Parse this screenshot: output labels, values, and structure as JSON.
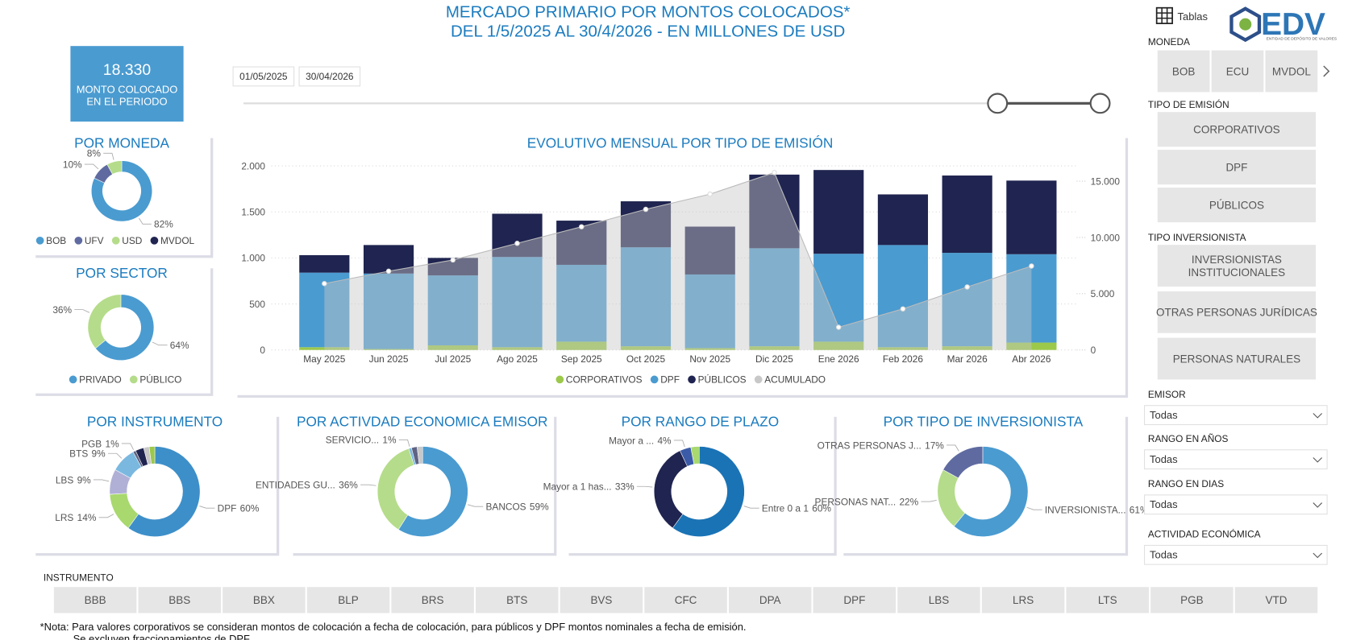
{
  "header": {
    "title_lines": [
      "MERCADO PRIMARIO POR MONTOS COLOCADOS*",
      "DEL 1/5/2025 AL 30/4/2026 - EN MILLONES DE USD"
    ],
    "tables_button": "Tablas",
    "logo": "EDV",
    "logo_tagline": "ENTIDAD DE DEPÓSITO DE VALORES"
  },
  "kpi": {
    "value": "18.330",
    "label_lines": [
      "MONTO COLOCADO",
      "EN EL PERIODO"
    ]
  },
  "date_range": {
    "start": "01/05/2025",
    "end": "30/04/2026"
  },
  "chart_data": [
    {
      "type": "donut",
      "title": "POR MONEDA",
      "categories": [
        "BOB",
        "UFV",
        "USD",
        "MVDOL"
      ],
      "values": [
        82,
        10,
        8,
        null
      ],
      "value_labels": [
        "82%",
        "10%",
        "8%",
        null
      ],
      "colors": [
        "#4a9bd0",
        "#5f6ba0",
        "#b5dc8a",
        "#1f2450"
      ],
      "legend": "bottom",
      "labels": "percent"
    },
    {
      "type": "donut",
      "title": "POR SECTOR",
      "categories": [
        "PRIVADO",
        "PÚBLICO"
      ],
      "values": [
        64,
        36
      ],
      "value_labels": [
        "64%",
        "36%"
      ],
      "colors": [
        "#4a9bd0",
        "#b5dc8a"
      ],
      "legend": "bottom",
      "labels": "percent"
    },
    {
      "type": "bar",
      "stacked": true,
      "title": "EVOLUTIVO MENSUAL POR TIPO DE EMISIÓN",
      "categories": [
        "May 2025",
        "Jun 2025",
        "Jul 2025",
        "Ago 2025",
        "Sep 2025",
        "Oct 2025",
        "Nov 2025",
        "Dic 2025",
        "Ene 2026",
        "Feb 2026",
        "Mar 2026",
        "Abr 2026"
      ],
      "series": [
        {
          "name": "CORPORATIVOS",
          "color": "#9cc94a",
          "values": [
            30,
            10,
            50,
            30,
            90,
            40,
            20,
            40,
            90,
            30,
            40,
            80
          ]
        },
        {
          "name": "DPF",
          "color": "#4a9bd0",
          "values": [
            810,
            820,
            760,
            980,
            835,
            1075,
            800,
            1065,
            955,
            1110,
            1015,
            960
          ]
        },
        {
          "name": "PÚBLICOS",
          "color": "#1f2450",
          "values": [
            190,
            310,
            190,
            470,
            480,
            500,
            520,
            800,
            910,
            550,
            840,
            800
          ]
        },
        {
          "name": "ACUMULADO",
          "color": "#c8c8c8",
          "type": "area",
          "axis": "y2",
          "values": [
            5900,
            7000,
            8000,
            9480,
            10950,
            12500,
            13850,
            15770,
            2020,
            3650,
            5600,
            7460
          ]
        }
      ],
      "ylim": [
        0,
        2200
      ],
      "yticks": [
        0,
        500,
        {
          "value": 1000,
          "label": "1.000"
        },
        {
          "value": 1500,
          "label": "1.500"
        },
        {
          "value": 2000,
          "label": "2.000"
        }
      ],
      "y2lim": [
        0,
        18000
      ],
      "y2ticks": [
        0,
        {
          "value": 5000,
          "label": "5.000"
        },
        {
          "value": 10000,
          "label": "10.000"
        },
        {
          "value": 15000,
          "label": "15.000"
        }
      ],
      "grid": true,
      "legend": "bottom"
    },
    {
      "type": "donut",
      "title": "POR INSTRUMENTO",
      "categories": [
        "DPF",
        "LRS",
        "LBS",
        "BTS",
        "PGB",
        null,
        null,
        null
      ],
      "values": [
        60,
        14,
        9,
        9,
        1,
        3,
        2,
        2
      ],
      "value_labels": [
        "60%",
        "14%",
        "9%",
        "9%",
        "1%",
        null,
        null,
        null
      ],
      "colors": [
        "#3d8fc9",
        "#a8d86e",
        "#b0b0d6",
        "#7ab8e0",
        "#5f6484",
        "#1f2450",
        "#c8c8c8",
        "#9cc94a"
      ],
      "labels": "category-and-percent"
    },
    {
      "type": "donut",
      "title": "POR ACTIVDAD ECONOMICA EMISOR",
      "categories": [
        "BANCOS",
        "ENTIDADES GU...",
        "SERVICIO...",
        null,
        null
      ],
      "values": [
        59,
        36,
        1,
        2,
        2
      ],
      "value_labels": [
        "59%",
        "36%",
        "1%",
        null,
        null
      ],
      "colors": [
        "#4a9bd0",
        "#b5dc8a",
        "#7ab8e0",
        "#5f6484",
        "#c8c8c8"
      ],
      "labels": "category-and-percent"
    },
    {
      "type": "donut",
      "title": "POR RANGO DE PLAZO",
      "categories": [
        "Entre 0 a 1",
        "Mayor a 1 has...",
        "Mayor a ...",
        null
      ],
      "values": [
        60,
        33,
        4,
        3
      ],
      "value_labels": [
        "60%",
        "33%",
        "4%",
        null
      ],
      "colors": [
        "#1a73b5",
        "#1f2450",
        "#3b5ba8",
        "#a8d86e"
      ],
      "labels": "category-and-percent"
    },
    {
      "type": "donut",
      "title": "POR TIPO DE INVERSIONISTA",
      "categories": [
        "INVERSIONISTA...",
        "PERSONAS NAT...",
        "OTRAS PERSONAS J..."
      ],
      "values": [
        61,
        22,
        17
      ],
      "value_labels": [
        "61%",
        "22%",
        "17%"
      ],
      "colors": [
        "#4a9bd0",
        "#b5dc8a",
        "#5f6ba0"
      ],
      "labels": "category-and-percent"
    }
  ],
  "slicers": {
    "moneda": {
      "label": "MONEDA",
      "options": [
        "BOB",
        "ECU",
        "MVDOL"
      ]
    },
    "tipo_emision": {
      "label": "TIPO DE EMISIÓN",
      "options": [
        "CORPORATIVOS",
        "DPF",
        "PÚBLICOS"
      ]
    },
    "tipo_inversionista": {
      "label": "TIPO INVERSIONISTA",
      "options": [
        [
          "INVERSIONISTAS",
          "INSTITUCIONALES"
        ],
        [
          "OTRAS PERSONAS JURÍDICAS"
        ],
        [
          "PERSONAS NATURALES"
        ]
      ]
    },
    "dropdowns": [
      {
        "label": "EMISOR",
        "value": "Todas"
      },
      {
        "label": "RANGO EN AÑOS",
        "value": "Todas"
      },
      {
        "label": "RANGO EN DIAS",
        "value": "Todas"
      },
      {
        "label": "ACTIVIDAD ECONÓMICA",
        "value": "Todas"
      }
    ],
    "instrumento": {
      "label": "INSTRUMENTO",
      "options": [
        "BBB",
        "BBS",
        "BBX",
        "BLP",
        "BRS",
        "BTS",
        "BVS",
        "CFC",
        "DPA",
        "DPF",
        "LBS",
        "LRS",
        "LTS",
        "PGB",
        "VTD"
      ]
    }
  },
  "note_lines": [
    "*Nota: Para valores corporativos se consideran montos de colocación a fecha de colocación, para públicos y DPF montos nominales a fecha de emisión.",
    "Se excluyen fraccionamientos de DPF."
  ]
}
